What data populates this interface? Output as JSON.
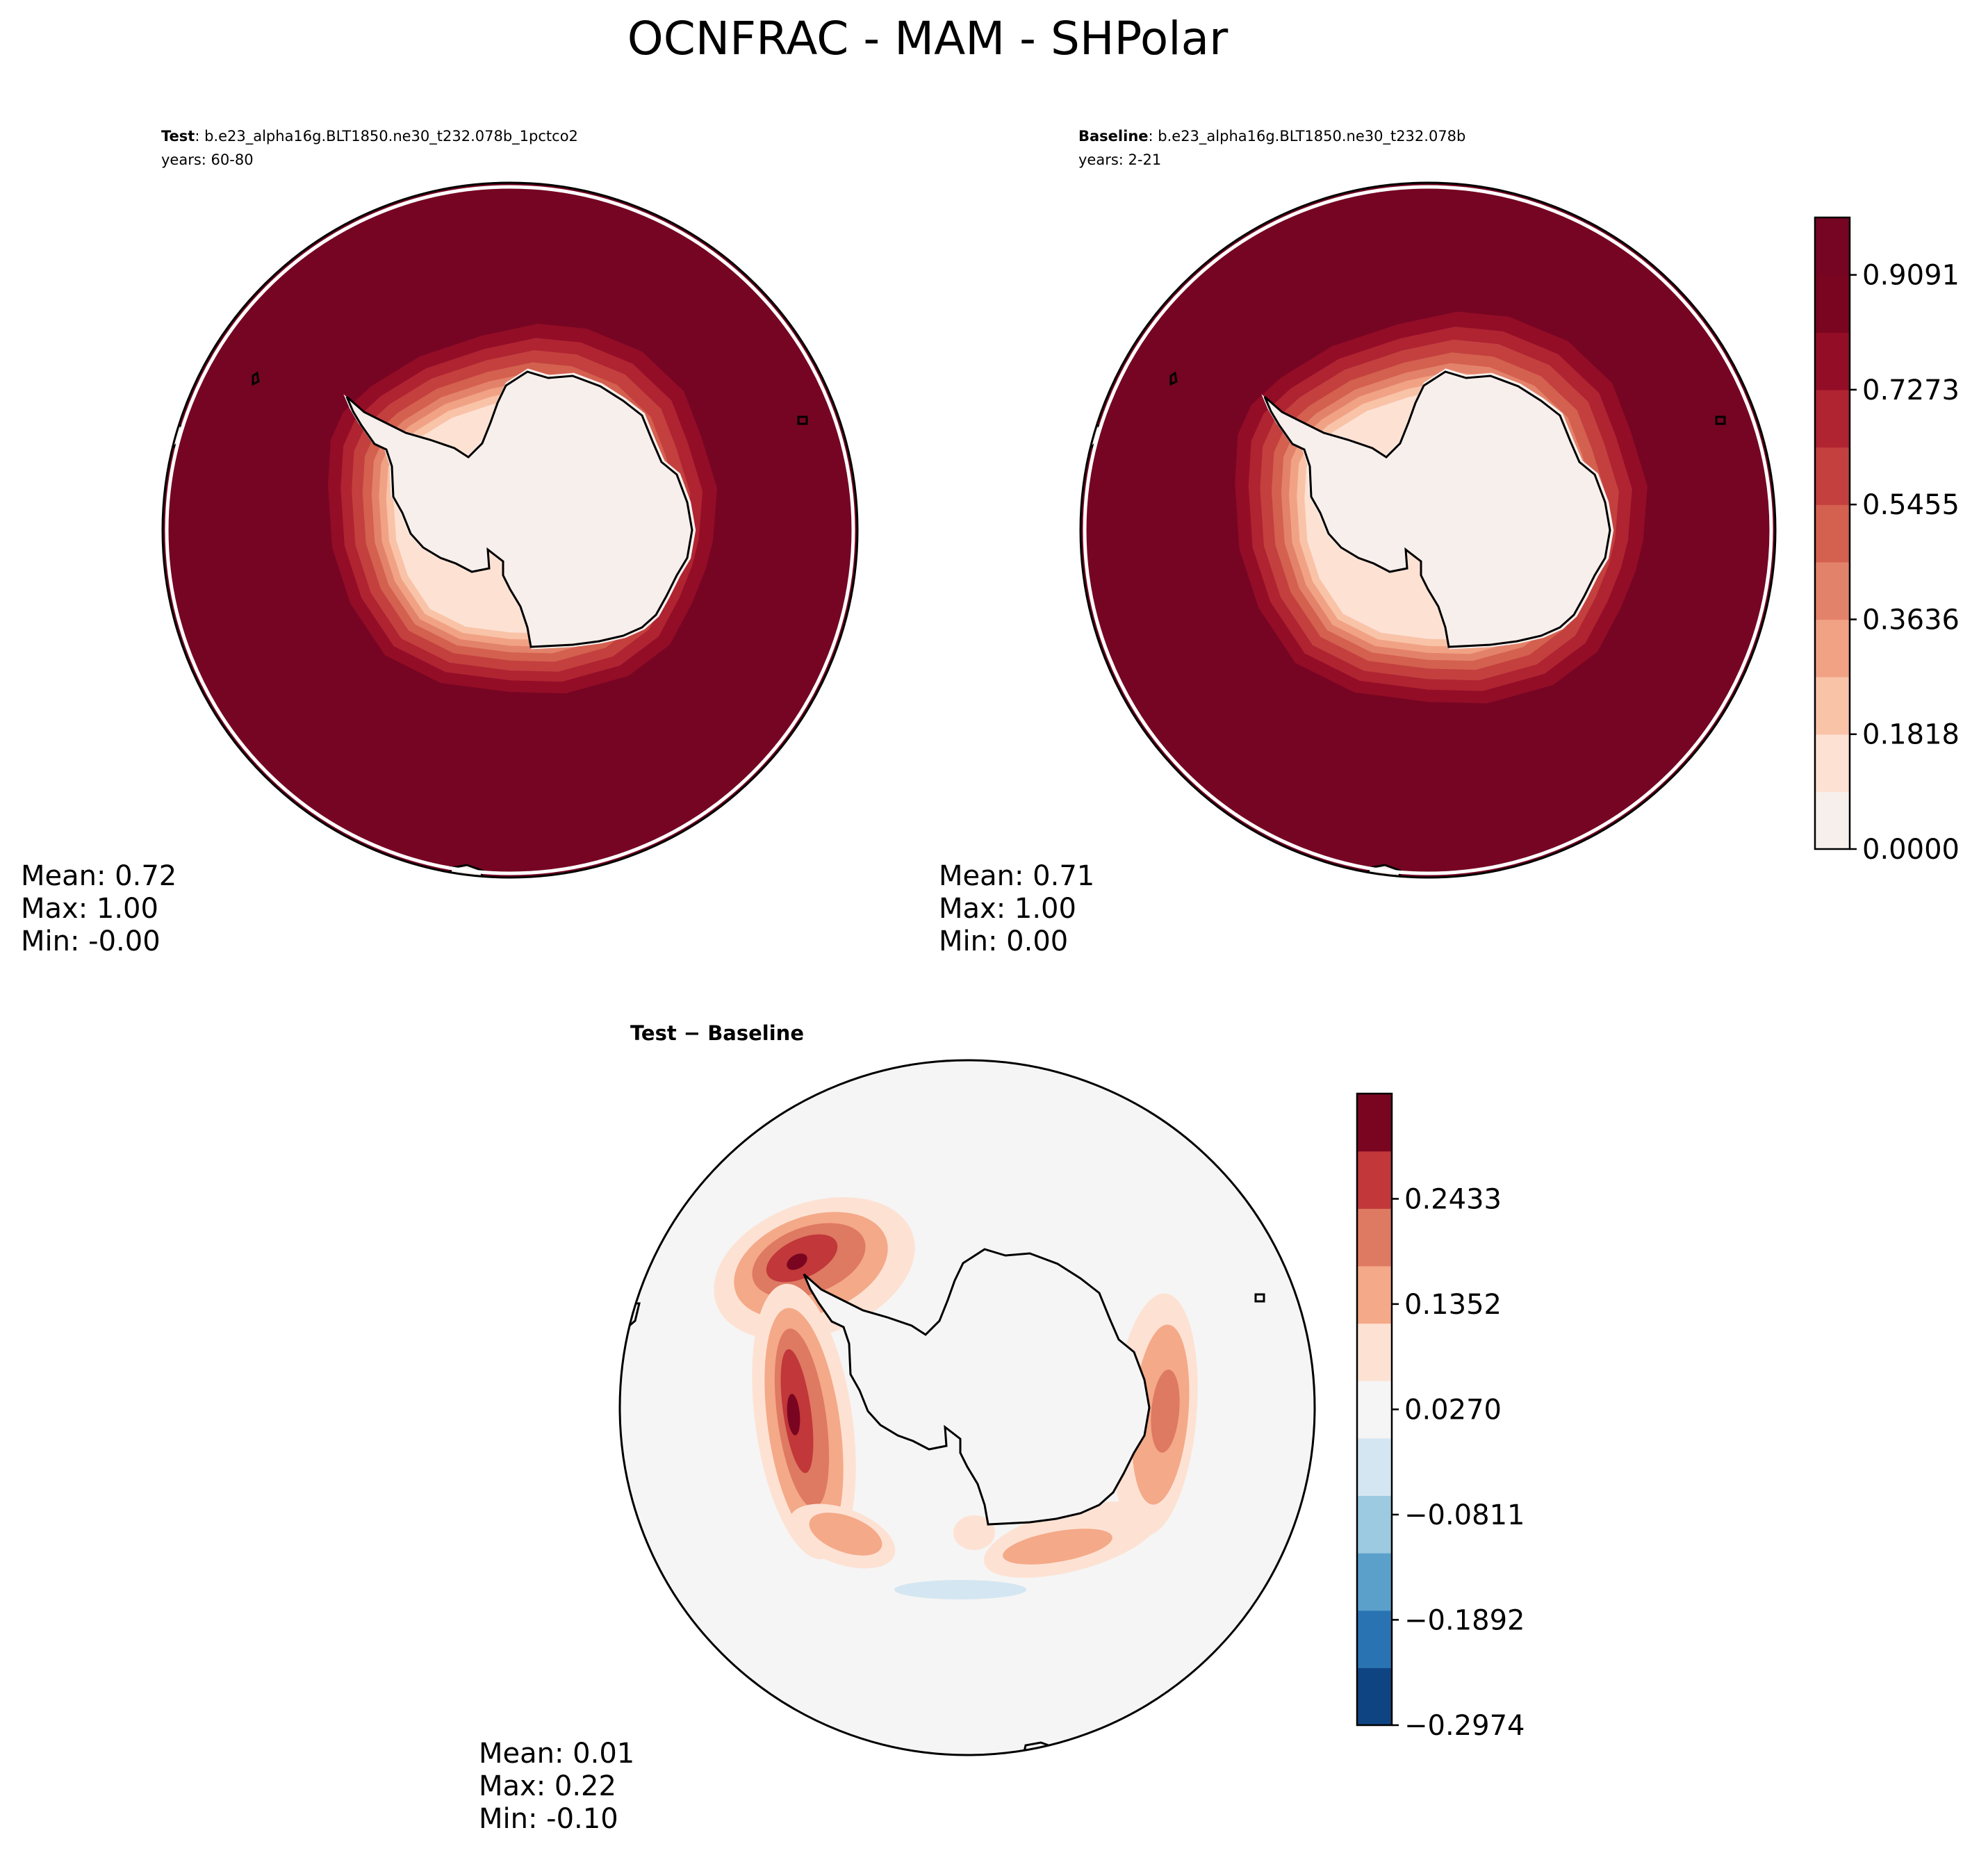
{
  "chart_data": {
    "type": "contour-map",
    "suptitle": "OCNFRAC - MAM - SHPolar",
    "panels": [
      {
        "id": "test",
        "title_bold": "Test",
        "title_rest": ": b.e23_alpha16g.BLT1850.ne30_t232.078b_1pctco2",
        "years": "years: 60-80",
        "stats": {
          "mean": "Mean:  0.72",
          "max": "Max:  1.00",
          "min": "Min: -0.00"
        },
        "ice_edge_scale": 1.0
      },
      {
        "id": "baseline",
        "title_bold": "Baseline",
        "title_rest": ": b.e23_alpha16g.BLT1850.ne30_t232.078b",
        "years": "years: 2-21",
        "stats": {
          "mean": "Mean:  0.71",
          "max": "Max:  1.00",
          "min": "Min:  0.00"
        },
        "ice_edge_scale": 1.06
      },
      {
        "id": "diff",
        "title": "Test − Baseline",
        "stats": {
          "mean": "Mean:  0.01",
          "max": "Max:  0.22",
          "min": "Min: -0.10"
        }
      }
    ],
    "colorbar_main": {
      "range": [
        0.0,
        1.0
      ],
      "levels": 11,
      "tick_values": [
        0.0,
        0.1818,
        0.3636,
        0.5455,
        0.7273,
        0.9091
      ],
      "tick_labels": [
        "0.0000",
        "0.1818",
        "0.3636",
        "0.5455",
        "0.7273",
        "0.9091"
      ],
      "colors": [
        "#f7efec",
        "#fde2d4",
        "#f9c3a8",
        "#f1a285",
        "#e3826a",
        "#d4604f",
        "#c3403e",
        "#b02331",
        "#930d27",
        "#7a0520",
        "#760523"
      ]
    },
    "colorbar_diff": {
      "range": [
        -0.2974,
        0.3514
      ],
      "levels": 12,
      "tick_values": [
        -0.2974,
        -0.1892,
        -0.0811,
        0.027,
        0.1352,
        0.2433
      ],
      "tick_labels": [
        "−0.2974",
        "−0.1892",
        "−0.0811",
        "0.0270",
        "0.1352",
        "0.2433"
      ],
      "colors": [
        "#0f4482",
        "#2a73b3",
        "#5aa0cb",
        "#9ccae0",
        "#d4e6f1",
        "#f5f5f5",
        "#fde2d4",
        "#f4a988",
        "#de7962",
        "#c1373a",
        "#7a0520"
      ]
    }
  }
}
